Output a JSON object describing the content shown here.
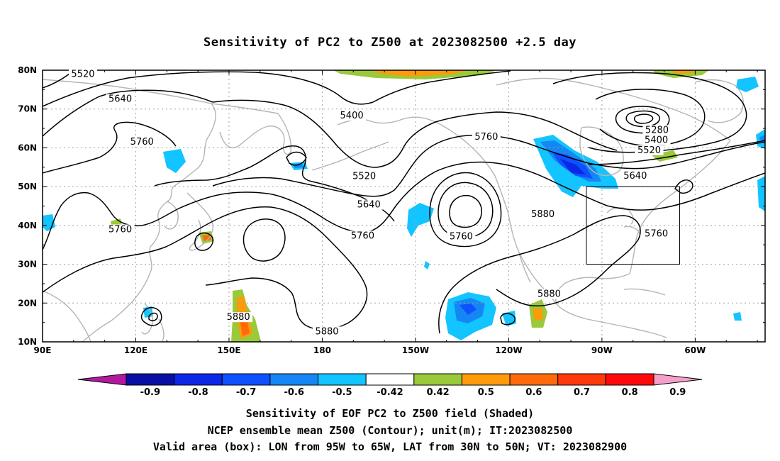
{
  "title": "Sensitivity of PC2 to Z500 at 2023082500 +2.5 day",
  "map": {
    "lon_labels": [
      "90E",
      "120E",
      "150E",
      "180",
      "150W",
      "120W",
      "90W",
      "60W"
    ],
    "lat_labels": [
      "80N",
      "70N",
      "60N",
      "50N",
      "40N",
      "30N",
      "20N",
      "10N"
    ],
    "contour_labels": [
      {
        "text": "5520",
        "lon": 103,
        "lat": 78.6
      },
      {
        "text": "5640",
        "lon": 115,
        "lat": 72.2
      },
      {
        "text": "5760",
        "lon": 122,
        "lat": 61.2
      },
      {
        "text": "5760",
        "lon": 115,
        "lat": 38.6
      },
      {
        "text": "5400",
        "lon": 189.5,
        "lat": 67.9
      },
      {
        "text": "5520",
        "lon": 193.5,
        "lat": 52.3
      },
      {
        "text": "5640",
        "lon": 195,
        "lat": 45.0
      },
      {
        "text": "5760",
        "lon": 193,
        "lat": 37.0
      },
      {
        "text": "5760",
        "lon": 232.8,
        "lat": 62.5
      },
      {
        "text": "5760",
        "lon": 224.7,
        "lat": 36.8
      },
      {
        "text": "5880",
        "lon": 153,
        "lat": 16.0
      },
      {
        "text": "5880",
        "lon": 181.5,
        "lat": 12.3
      },
      {
        "text": "5880",
        "lon": 251,
        "lat": 42.5
      },
      {
        "text": "5880",
        "lon": 253,
        "lat": 22.0
      },
      {
        "text": "5280",
        "lon": 287.7,
        "lat": 64.2
      },
      {
        "text": "5400",
        "lon": 287.5,
        "lat": 61.6
      },
      {
        "text": "5520",
        "lon": 285.2,
        "lat": 59.0
      },
      {
        "text": "5640",
        "lon": 280.7,
        "lat": 52.4
      },
      {
        "text": "5760",
        "lon": 287.5,
        "lat": 37.5
      }
    ],
    "valid_box": {
      "lon_min": 265,
      "lon_max": 295,
      "lat_min": 30,
      "lat_max": 50
    }
  },
  "colorbar": {
    "labels": [
      "-0.9",
      "-0.8",
      "-0.7",
      "-0.6",
      "-0.5",
      "-0.42",
      "0.42",
      "0.5",
      "0.6",
      "0.7",
      "0.8",
      "0.9"
    ],
    "colors": {
      "under": "#b3199f",
      "over": "#f59fcb",
      "bins": [
        "#0a0fa4",
        "#0a28e6",
        "#0f50ff",
        "#1487f4",
        "#12c4ff",
        "#ffffff",
        "#9ac93a",
        "#ff9a0a",
        "#ff6a0a",
        "#ff3a0a",
        "#ff0a0a"
      ]
    }
  },
  "captions": [
    "Sensitivity of EOF PC2 to Z500 field (Shaded)",
    "NCEP ensemble mean Z500 (Contour); unit(m); IT:2023082500",
    "Valid area (box): LON from 95W to 65W, LAT from 30N to 50N; VT: 2023082900"
  ],
  "colors": {
    "contour": "#000000",
    "coast": "#b4b4b4",
    "grid": "#a0a0a0"
  }
}
